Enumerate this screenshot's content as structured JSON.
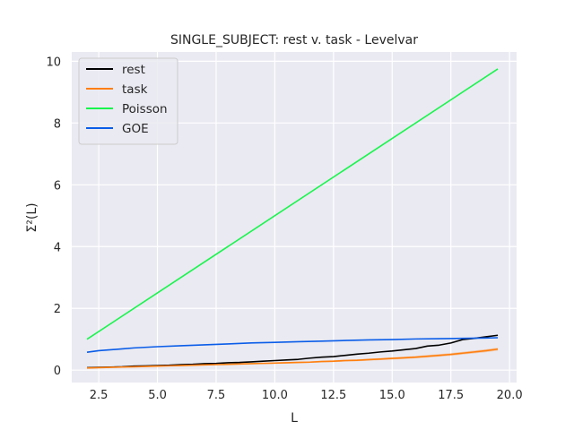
{
  "chart_data": {
    "type": "line",
    "title": "SINGLE_SUBJECT: rest v. task - Levelvar",
    "xlabel": "L",
    "ylabel": "Σ²(L)",
    "xlim": [
      1.35,
      20.3
    ],
    "ylim": [
      -0.4,
      10.3
    ],
    "xticks": [
      2.5,
      5.0,
      7.5,
      10.0,
      12.5,
      15.0,
      17.5,
      20.0
    ],
    "xtick_labels": [
      "2.5",
      "5.0",
      "7.5",
      "10.0",
      "12.5",
      "15.0",
      "17.5",
      "20.0"
    ],
    "yticks": [
      0,
      2,
      4,
      6,
      8,
      10
    ],
    "ytick_labels": [
      "0",
      "2",
      "4",
      "6",
      "8",
      "10"
    ],
    "grid": true,
    "background": "#eaeaf2",
    "legend_position": "top-left",
    "series": [
      {
        "name": "rest",
        "color": "#000000",
        "x": [
          2.0,
          2.5,
          3.0,
          3.5,
          4.0,
          4.5,
          5.0,
          5.5,
          6.0,
          6.5,
          7.0,
          7.5,
          8.0,
          8.5,
          9.0,
          9.5,
          10.0,
          10.5,
          11.0,
          11.5,
          12.0,
          12.5,
          13.0,
          13.5,
          14.0,
          14.5,
          15.0,
          15.5,
          16.0,
          16.5,
          17.0,
          17.5,
          18.0,
          18.5,
          19.0,
          19.5
        ],
        "y": [
          0.08,
          0.09,
          0.1,
          0.11,
          0.13,
          0.14,
          0.15,
          0.16,
          0.18,
          0.19,
          0.21,
          0.22,
          0.24,
          0.25,
          0.27,
          0.29,
          0.31,
          0.33,
          0.35,
          0.39,
          0.42,
          0.44,
          0.48,
          0.52,
          0.55,
          0.59,
          0.62,
          0.66,
          0.7,
          0.78,
          0.81,
          0.88,
          0.99,
          1.03,
          1.08,
          1.13
        ]
      },
      {
        "name": "task",
        "color": "#ff7f0e",
        "band": 0.05,
        "x": [
          2.0,
          2.5,
          3.0,
          3.5,
          4.0,
          4.5,
          5.0,
          5.5,
          6.0,
          6.5,
          7.0,
          7.5,
          8.0,
          8.5,
          9.0,
          9.5,
          10.0,
          10.5,
          11.0,
          11.5,
          12.0,
          12.5,
          13.0,
          13.5,
          14.0,
          14.5,
          15.0,
          15.5,
          16.0,
          16.5,
          17.0,
          17.5,
          18.0,
          18.5,
          19.0,
          19.5
        ],
        "y": [
          0.07,
          0.08,
          0.09,
          0.1,
          0.11,
          0.12,
          0.13,
          0.14,
          0.15,
          0.16,
          0.17,
          0.18,
          0.19,
          0.2,
          0.21,
          0.22,
          0.23,
          0.24,
          0.25,
          0.26,
          0.28,
          0.29,
          0.31,
          0.32,
          0.34,
          0.36,
          0.38,
          0.4,
          0.42,
          0.45,
          0.48,
          0.51,
          0.55,
          0.59,
          0.63,
          0.68
        ]
      },
      {
        "name": "Poisson",
        "color": "#18f54c",
        "x": [
          2.0,
          19.5
        ],
        "y": [
          1.0,
          9.75
        ]
      },
      {
        "name": "GOE",
        "color": "#0a5de8",
        "x": [
          2.0,
          2.5,
          3.0,
          3.5,
          4.0,
          5.0,
          6.0,
          7.0,
          8.0,
          9.0,
          10.0,
          11.0,
          12.0,
          13.0,
          14.0,
          15.0,
          16.0,
          17.0,
          18.0,
          19.0,
          19.5
        ],
        "y": [
          0.58,
          0.63,
          0.66,
          0.69,
          0.72,
          0.76,
          0.79,
          0.82,
          0.85,
          0.88,
          0.9,
          0.92,
          0.94,
          0.96,
          0.98,
          0.99,
          1.01,
          1.02,
          1.03,
          1.04,
          1.05
        ]
      }
    ]
  }
}
